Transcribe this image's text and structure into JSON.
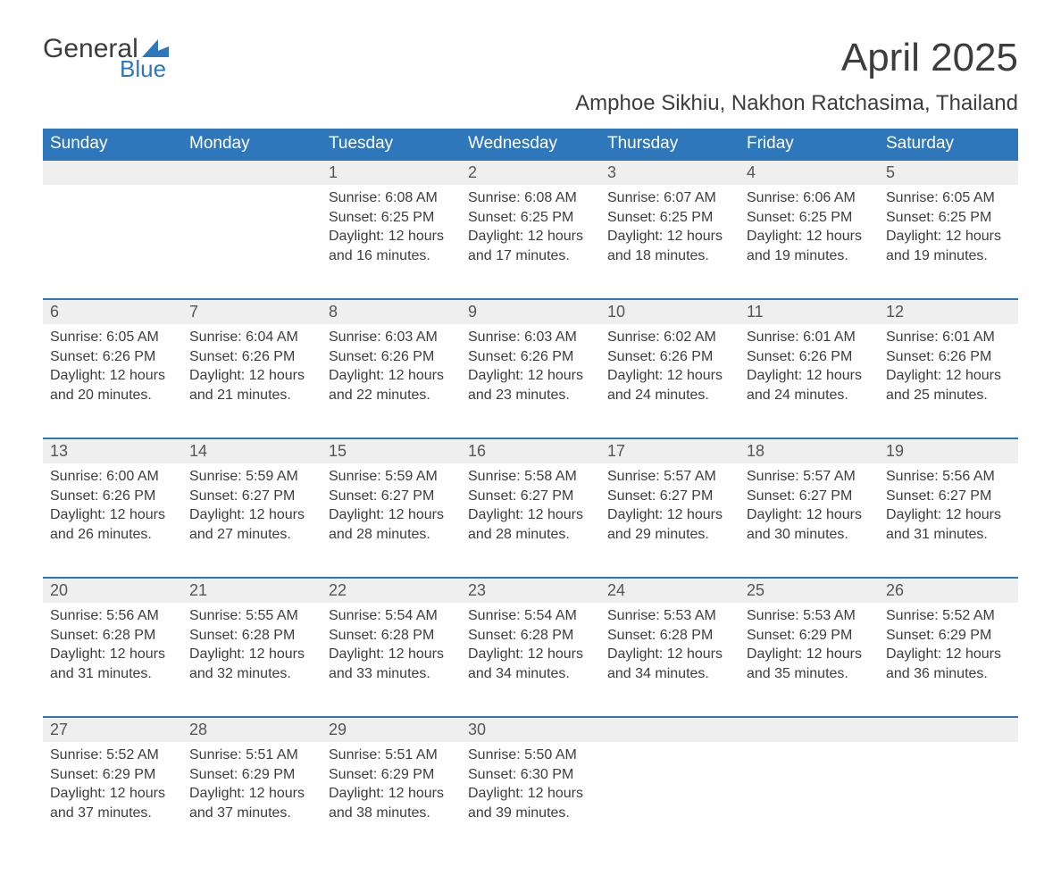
{
  "logo": {
    "text_general": "General",
    "text_blue": "Blue",
    "flag_color": "#2f77bb"
  },
  "title": "April 2025",
  "subtitle": "Amphoe Sikhiu, Nakhon Ratchasima, Thailand",
  "header_bg": "#2f77bb",
  "header_fg": "#ffffff",
  "daynum_bg": "#efefef",
  "row_border": "#2f77bb",
  "text_color": "#3d3d3d",
  "fontsize_title": 44,
  "fontsize_subtitle": 24,
  "fontsize_dayhead": 19,
  "fontsize_body": 16,
  "day_headers": [
    "Sunday",
    "Monday",
    "Tuesday",
    "Wednesday",
    "Thursday",
    "Friday",
    "Saturday"
  ],
  "weeks": [
    [
      null,
      null,
      {
        "n": "1",
        "sr": "Sunrise: 6:08 AM",
        "ss": "Sunset: 6:25 PM",
        "d1": "Daylight: 12 hours",
        "d2": "and 16 minutes."
      },
      {
        "n": "2",
        "sr": "Sunrise: 6:08 AM",
        "ss": "Sunset: 6:25 PM",
        "d1": "Daylight: 12 hours",
        "d2": "and 17 minutes."
      },
      {
        "n": "3",
        "sr": "Sunrise: 6:07 AM",
        "ss": "Sunset: 6:25 PM",
        "d1": "Daylight: 12 hours",
        "d2": "and 18 minutes."
      },
      {
        "n": "4",
        "sr": "Sunrise: 6:06 AM",
        "ss": "Sunset: 6:25 PM",
        "d1": "Daylight: 12 hours",
        "d2": "and 19 minutes."
      },
      {
        "n": "5",
        "sr": "Sunrise: 6:05 AM",
        "ss": "Sunset: 6:25 PM",
        "d1": "Daylight: 12 hours",
        "d2": "and 19 minutes."
      }
    ],
    [
      {
        "n": "6",
        "sr": "Sunrise: 6:05 AM",
        "ss": "Sunset: 6:26 PM",
        "d1": "Daylight: 12 hours",
        "d2": "and 20 minutes."
      },
      {
        "n": "7",
        "sr": "Sunrise: 6:04 AM",
        "ss": "Sunset: 6:26 PM",
        "d1": "Daylight: 12 hours",
        "d2": "and 21 minutes."
      },
      {
        "n": "8",
        "sr": "Sunrise: 6:03 AM",
        "ss": "Sunset: 6:26 PM",
        "d1": "Daylight: 12 hours",
        "d2": "and 22 minutes."
      },
      {
        "n": "9",
        "sr": "Sunrise: 6:03 AM",
        "ss": "Sunset: 6:26 PM",
        "d1": "Daylight: 12 hours",
        "d2": "and 23 minutes."
      },
      {
        "n": "10",
        "sr": "Sunrise: 6:02 AM",
        "ss": "Sunset: 6:26 PM",
        "d1": "Daylight: 12 hours",
        "d2": "and 24 minutes."
      },
      {
        "n": "11",
        "sr": "Sunrise: 6:01 AM",
        "ss": "Sunset: 6:26 PM",
        "d1": "Daylight: 12 hours",
        "d2": "and 24 minutes."
      },
      {
        "n": "12",
        "sr": "Sunrise: 6:01 AM",
        "ss": "Sunset: 6:26 PM",
        "d1": "Daylight: 12 hours",
        "d2": "and 25 minutes."
      }
    ],
    [
      {
        "n": "13",
        "sr": "Sunrise: 6:00 AM",
        "ss": "Sunset: 6:26 PM",
        "d1": "Daylight: 12 hours",
        "d2": "and 26 minutes."
      },
      {
        "n": "14",
        "sr": "Sunrise: 5:59 AM",
        "ss": "Sunset: 6:27 PM",
        "d1": "Daylight: 12 hours",
        "d2": "and 27 minutes."
      },
      {
        "n": "15",
        "sr": "Sunrise: 5:59 AM",
        "ss": "Sunset: 6:27 PM",
        "d1": "Daylight: 12 hours",
        "d2": "and 28 minutes."
      },
      {
        "n": "16",
        "sr": "Sunrise: 5:58 AM",
        "ss": "Sunset: 6:27 PM",
        "d1": "Daylight: 12 hours",
        "d2": "and 28 minutes."
      },
      {
        "n": "17",
        "sr": "Sunrise: 5:57 AM",
        "ss": "Sunset: 6:27 PM",
        "d1": "Daylight: 12 hours",
        "d2": "and 29 minutes."
      },
      {
        "n": "18",
        "sr": "Sunrise: 5:57 AM",
        "ss": "Sunset: 6:27 PM",
        "d1": "Daylight: 12 hours",
        "d2": "and 30 minutes."
      },
      {
        "n": "19",
        "sr": "Sunrise: 5:56 AM",
        "ss": "Sunset: 6:27 PM",
        "d1": "Daylight: 12 hours",
        "d2": "and 31 minutes."
      }
    ],
    [
      {
        "n": "20",
        "sr": "Sunrise: 5:56 AM",
        "ss": "Sunset: 6:28 PM",
        "d1": "Daylight: 12 hours",
        "d2": "and 31 minutes."
      },
      {
        "n": "21",
        "sr": "Sunrise: 5:55 AM",
        "ss": "Sunset: 6:28 PM",
        "d1": "Daylight: 12 hours",
        "d2": "and 32 minutes."
      },
      {
        "n": "22",
        "sr": "Sunrise: 5:54 AM",
        "ss": "Sunset: 6:28 PM",
        "d1": "Daylight: 12 hours",
        "d2": "and 33 minutes."
      },
      {
        "n": "23",
        "sr": "Sunrise: 5:54 AM",
        "ss": "Sunset: 6:28 PM",
        "d1": "Daylight: 12 hours",
        "d2": "and 34 minutes."
      },
      {
        "n": "24",
        "sr": "Sunrise: 5:53 AM",
        "ss": "Sunset: 6:28 PM",
        "d1": "Daylight: 12 hours",
        "d2": "and 34 minutes."
      },
      {
        "n": "25",
        "sr": "Sunrise: 5:53 AM",
        "ss": "Sunset: 6:29 PM",
        "d1": "Daylight: 12 hours",
        "d2": "and 35 minutes."
      },
      {
        "n": "26",
        "sr": "Sunrise: 5:52 AM",
        "ss": "Sunset: 6:29 PM",
        "d1": "Daylight: 12 hours",
        "d2": "and 36 minutes."
      }
    ],
    [
      {
        "n": "27",
        "sr": "Sunrise: 5:52 AM",
        "ss": "Sunset: 6:29 PM",
        "d1": "Daylight: 12 hours",
        "d2": "and 37 minutes."
      },
      {
        "n": "28",
        "sr": "Sunrise: 5:51 AM",
        "ss": "Sunset: 6:29 PM",
        "d1": "Daylight: 12 hours",
        "d2": "and 37 minutes."
      },
      {
        "n": "29",
        "sr": "Sunrise: 5:51 AM",
        "ss": "Sunset: 6:29 PM",
        "d1": "Daylight: 12 hours",
        "d2": "and 38 minutes."
      },
      {
        "n": "30",
        "sr": "Sunrise: 5:50 AM",
        "ss": "Sunset: 6:30 PM",
        "d1": "Daylight: 12 hours",
        "d2": "and 39 minutes."
      },
      null,
      null,
      null
    ]
  ]
}
